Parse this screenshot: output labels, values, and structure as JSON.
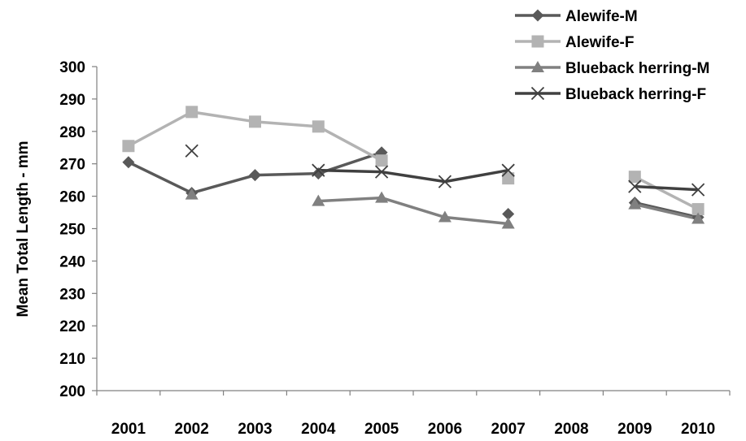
{
  "chart_data": {
    "type": "line",
    "title": "",
    "xlabel": "",
    "ylabel": "Mean Total Length - mm",
    "ylim": [
      200,
      300
    ],
    "yticks": [
      200,
      210,
      220,
      230,
      240,
      250,
      260,
      270,
      280,
      290,
      300
    ],
    "categories": [
      "2001",
      "2002",
      "2003",
      "2004",
      "2005",
      "2006",
      "2007",
      "2008",
      "2009",
      "2010"
    ],
    "grid": false,
    "legend_position": "top-right",
    "series": [
      {
        "name": "Alewife-M",
        "color": "#595959",
        "marker": "diamond",
        "values": [
          270.5,
          261,
          266.5,
          267,
          273.5,
          null,
          254.5,
          null,
          258,
          253.5
        ]
      },
      {
        "name": "Alewife-F",
        "color": "#b3b3b3",
        "marker": "square",
        "values": [
          275.5,
          286,
          283,
          281.5,
          271,
          null,
          265.5,
          null,
          266,
          256
        ]
      },
      {
        "name": "Blueback herring-M",
        "color": "#808080",
        "marker": "triangle",
        "values": [
          null,
          260.5,
          null,
          258.5,
          259.5,
          253.5,
          251.5,
          null,
          257.5,
          253
        ]
      },
      {
        "name": "Blueback herring-F",
        "color": "#404040",
        "marker": "x",
        "values": [
          null,
          274,
          null,
          268,
          267.5,
          264.5,
          268,
          null,
          263,
          262
        ]
      }
    ]
  }
}
